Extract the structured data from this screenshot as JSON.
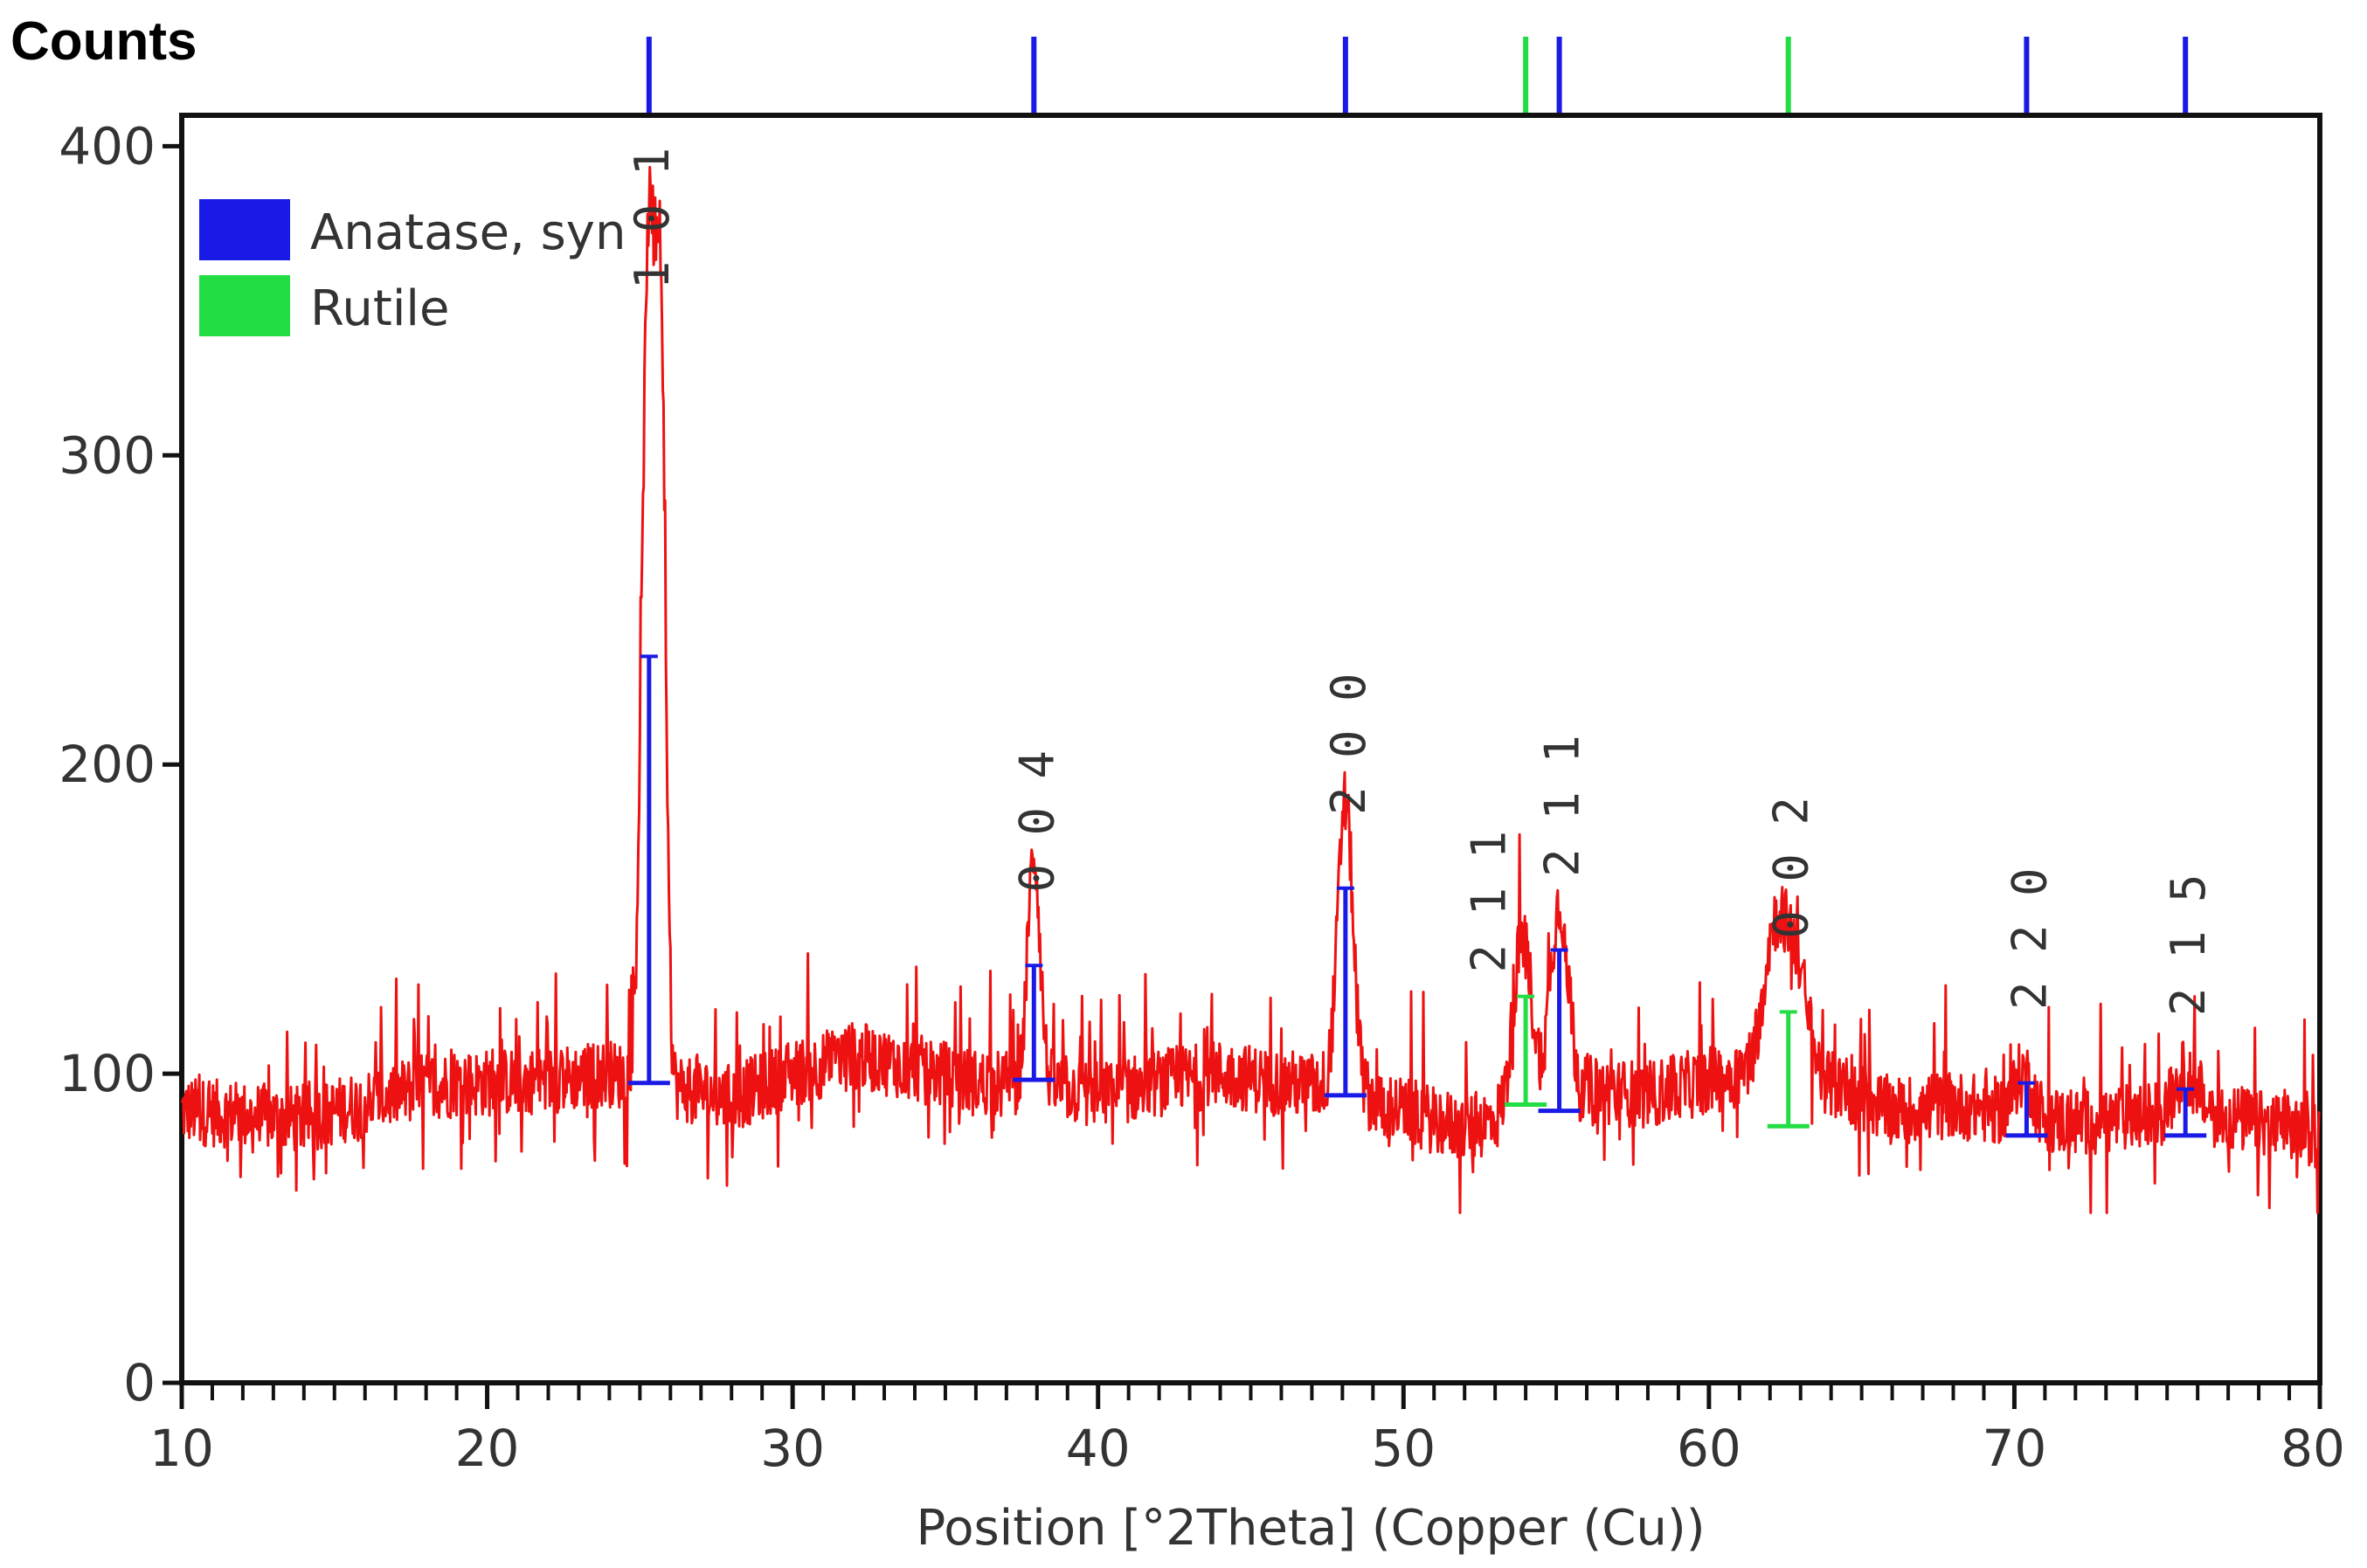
{
  "chart_data": {
    "type": "line",
    "title": "",
    "y_axis_title": "Counts",
    "x_axis_title": "Position [°2Theta] (Copper (Cu))",
    "xlim": [
      10,
      80
    ],
    "ylim": [
      0,
      410
    ],
    "x_ticks": [
      "10",
      "20",
      "30",
      "40",
      "50",
      "60",
      "70",
      "80"
    ],
    "y_ticks": [
      "0",
      "100",
      "200",
      "300",
      "400"
    ],
    "grid": false,
    "legend_position": "top-left",
    "legend": [
      {
        "label": "Anatase, syn",
        "color": "#1a1ae6"
      },
      {
        "label": "Rutile",
        "color": "#22dd44"
      }
    ],
    "colors": {
      "pattern": "#ee1111",
      "anatase": "#1a1ae6",
      "rutile": "#22dd44"
    },
    "baseline": [
      [
        10,
        88
      ],
      [
        14,
        85
      ],
      [
        18,
        96
      ],
      [
        22,
        98
      ],
      [
        24,
        100
      ],
      [
        26,
        96
      ],
      [
        28,
        92
      ],
      [
        30,
        100
      ],
      [
        32,
        106
      ],
      [
        34,
        102
      ],
      [
        36,
        97
      ],
      [
        38,
        97
      ],
      [
        40,
        93
      ],
      [
        42,
        97
      ],
      [
        44,
        100
      ],
      [
        46,
        97
      ],
      [
        48,
        95
      ],
      [
        50,
        88
      ],
      [
        52,
        82
      ],
      [
        54,
        88
      ],
      [
        56,
        95
      ],
      [
        58,
        93
      ],
      [
        60,
        98
      ],
      [
        62,
        102
      ],
      [
        64,
        96
      ],
      [
        66,
        88
      ],
      [
        68,
        90
      ],
      [
        70,
        87
      ],
      [
        72,
        84
      ],
      [
        74,
        86
      ],
      [
        76,
        88
      ],
      [
        78,
        84
      ],
      [
        80,
        80
      ]
    ],
    "peaks": [
      {
        "x": 25.3,
        "y": 375,
        "w": 0.22
      },
      {
        "x": 25.7,
        "y": 305,
        "w": 0.15
      },
      {
        "x": 37.9,
        "y": 172,
        "w": 0.2
      },
      {
        "x": 48.1,
        "y": 188,
        "w": 0.25
      },
      {
        "x": 53.9,
        "y": 145,
        "w": 0.3
      },
      {
        "x": 55.1,
        "y": 155,
        "w": 0.3
      },
      {
        "x": 62.1,
        "y": 140,
        "w": 0.35
      },
      {
        "x": 62.8,
        "y": 138,
        "w": 0.4
      },
      {
        "x": 70.3,
        "y": 100,
        "w": 0.3
      },
      {
        "x": 75.6,
        "y": 100,
        "w": 0.35
      }
    ],
    "reference_lines": [
      {
        "phase": "anatase",
        "x": 25.3,
        "y_top": 235,
        "y_base": 97,
        "hkl": "1 0 1"
      },
      {
        "phase": "anatase",
        "x": 37.9,
        "y_top": 135,
        "y_base": 98,
        "hkl": "0 0 4"
      },
      {
        "phase": "anatase",
        "x": 48.1,
        "y_top": 160,
        "y_base": 93,
        "hkl": "2 0 0"
      },
      {
        "phase": "rutile",
        "x": 54.0,
        "y_top": 125,
        "y_base": 90,
        "hkl": "2 1 1"
      },
      {
        "phase": "anatase",
        "x": 55.1,
        "y_top": 140,
        "y_base": 88,
        "hkl": "2 1 1"
      },
      {
        "phase": "rutile",
        "x": 62.6,
        "y_top": 120,
        "y_base": 83,
        "hkl": "0 0 2"
      },
      {
        "phase": "anatase",
        "x": 70.4,
        "y_top": 97,
        "y_base": 80,
        "hkl": "2 2 0"
      },
      {
        "phase": "anatase",
        "x": 75.6,
        "y_top": 95,
        "y_base": 80,
        "hkl": "2 1 5"
      }
    ]
  }
}
